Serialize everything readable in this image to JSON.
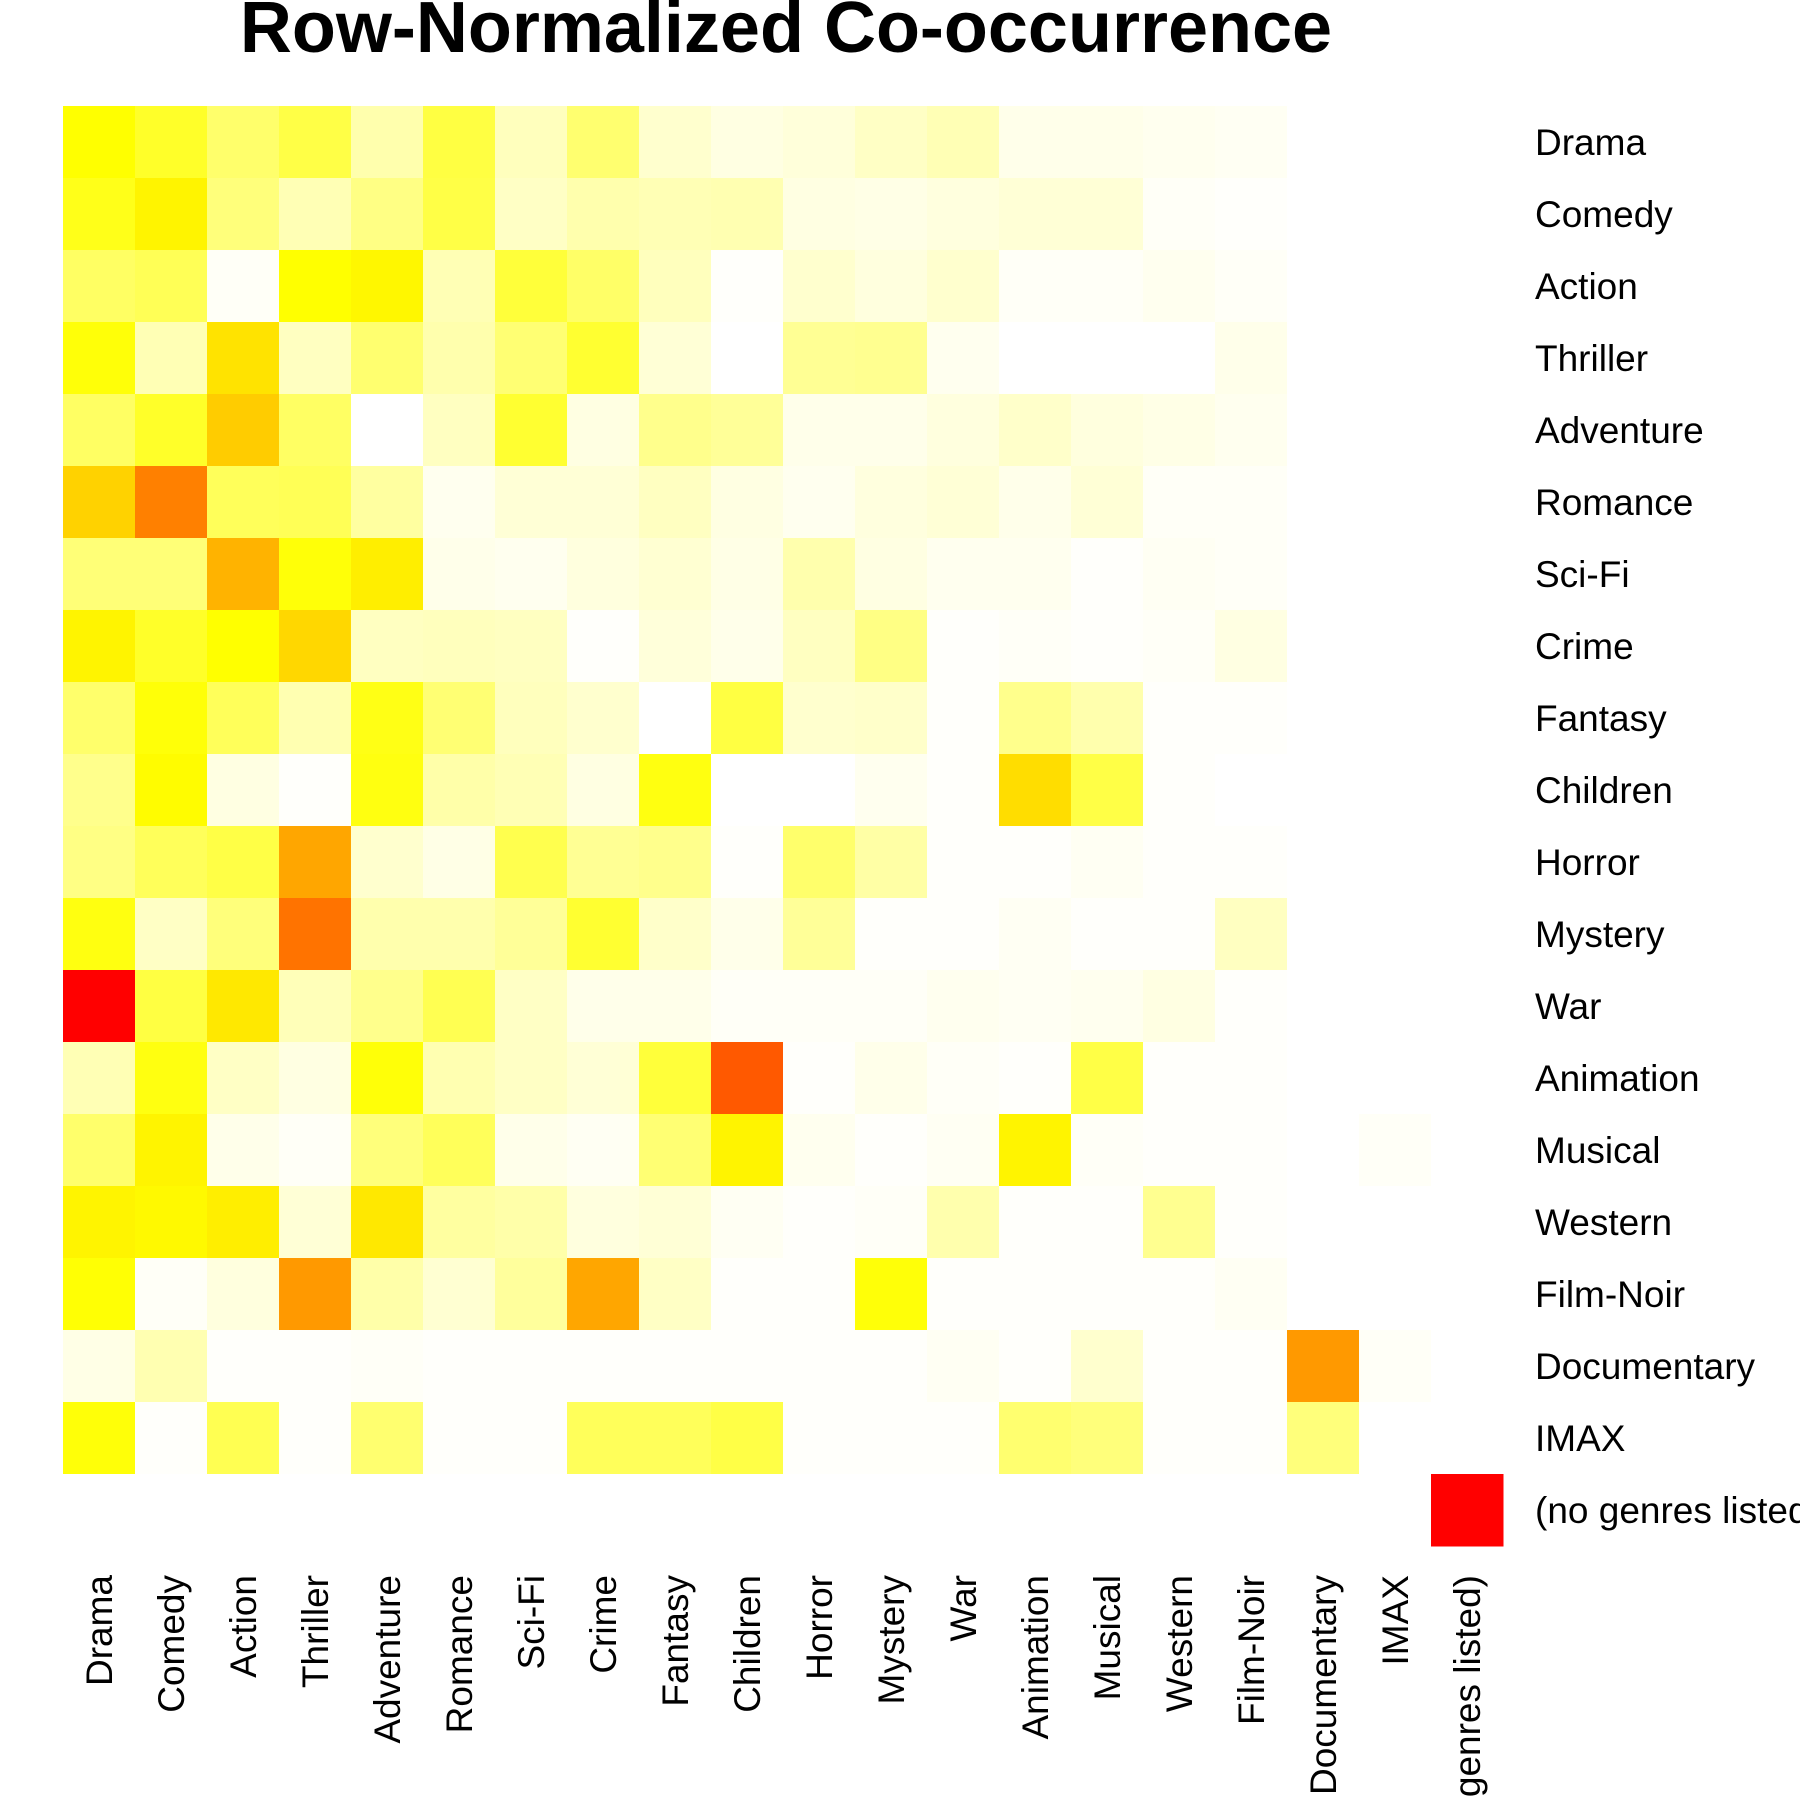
{
  "chart_data": {
    "type": "heatmap",
    "title": "Row-Normalized Co-occurrence",
    "rows": [
      "Drama",
      "Comedy",
      "Action",
      "Thriller",
      "Adventure",
      "Romance",
      "Sci-Fi",
      "Crime",
      "Fantasy",
      "Children",
      "Horror",
      "Mystery",
      "War",
      "Animation",
      "Musical",
      "Western",
      "Film-Noir",
      "Documentary",
      "IMAX",
      "(no genres listed)"
    ],
    "columns": [
      "Drama",
      "Comedy",
      "Action",
      "Thriller",
      "Adventure",
      "Romance",
      "Sci-Fi",
      "Crime",
      "Fantasy",
      "Children",
      "Horror",
      "Mystery",
      "War",
      "Animation",
      "Musical",
      "Western",
      "Film-Noir",
      "Documentary",
      "IMAX",
      "(no genres listed)"
    ],
    "values": [
      [
        0.62,
        0.52,
        0.36,
        0.45,
        0.2,
        0.46,
        0.16,
        0.35,
        0.12,
        0.07,
        0.09,
        0.14,
        0.18,
        0.05,
        0.05,
        0.04,
        0.03,
        0,
        0,
        0
      ],
      [
        0.56,
        0.66,
        0.32,
        0.18,
        0.3,
        0.45,
        0.14,
        0.2,
        0.18,
        0.19,
        0.07,
        0.06,
        0.08,
        0.1,
        0.1,
        0.02,
        0.01,
        0,
        0,
        0
      ],
      [
        0.38,
        0.41,
        0.02,
        0.62,
        0.65,
        0.18,
        0.48,
        0.37,
        0.16,
        0.01,
        0.12,
        0.08,
        0.12,
        0.02,
        0.02,
        0.04,
        0.02,
        0,
        0,
        0
      ],
      [
        0.6,
        0.18,
        0.72,
        0.15,
        0.35,
        0.2,
        0.34,
        0.5,
        0.1,
        0,
        0.26,
        0.27,
        0.04,
        0,
        0,
        0,
        0.05,
        0,
        0,
        0
      ],
      [
        0.38,
        0.52,
        0.8,
        0.38,
        0,
        0.15,
        0.5,
        0.07,
        0.28,
        0.25,
        0.05,
        0.05,
        0.08,
        0.13,
        0.08,
        0.06,
        0.04,
        0,
        0,
        0
      ],
      [
        0.78,
        0.86,
        0.4,
        0.41,
        0.23,
        0.04,
        0.1,
        0.1,
        0.15,
        0.07,
        0.04,
        0.08,
        0.1,
        0.05,
        0.1,
        0.02,
        0.02,
        0,
        0,
        0
      ],
      [
        0.33,
        0.33,
        0.82,
        0.6,
        0.68,
        0.05,
        0.04,
        0.08,
        0.11,
        0.06,
        0.2,
        0.07,
        0.04,
        0.04,
        0.01,
        0.03,
        0.02,
        0,
        0,
        0
      ],
      [
        0.66,
        0.52,
        0.62,
        0.76,
        0.15,
        0.16,
        0.15,
        0.01,
        0.09,
        0.05,
        0.15,
        0.3,
        0.01,
        0.02,
        0.01,
        0.02,
        0.07,
        0,
        0,
        0
      ],
      [
        0.36,
        0.6,
        0.4,
        0.19,
        0.57,
        0.34,
        0.16,
        0.12,
        0,
        0.46,
        0.12,
        0.13,
        0.01,
        0.28,
        0.2,
        0.01,
        0.01,
        0,
        0,
        0
      ],
      [
        0.28,
        0.63,
        0.07,
        0.01,
        0.58,
        0.21,
        0.18,
        0.07,
        0.58,
        0,
        0,
        0.04,
        0.01,
        0.74,
        0.45,
        0.01,
        0,
        0,
        0,
        0
      ],
      [
        0.3,
        0.4,
        0.45,
        0.83,
        0.12,
        0.06,
        0.43,
        0.26,
        0.28,
        0.01,
        0.36,
        0.22,
        0.01,
        0.01,
        0.03,
        0.01,
        0.01,
        0,
        0,
        0
      ],
      [
        0.58,
        0.14,
        0.32,
        0.87,
        0.2,
        0.2,
        0.25,
        0.5,
        0.13,
        0.05,
        0.25,
        0.01,
        0.01,
        0.03,
        0.01,
        0.01,
        0.15,
        0,
        0,
        0
      ],
      [
        1.0,
        0.46,
        0.7,
        0.17,
        0.28,
        0.42,
        0.14,
        0.05,
        0.05,
        0.02,
        0.02,
        0.02,
        0.04,
        0.03,
        0.04,
        0.07,
        0.01,
        0,
        0,
        0
      ],
      [
        0.18,
        0.58,
        0.14,
        0.07,
        0.6,
        0.19,
        0.14,
        0.1,
        0.48,
        0.89,
        0.01,
        0.05,
        0.02,
        0.01,
        0.45,
        0.01,
        0.01,
        0,
        0,
        0
      ],
      [
        0.36,
        0.66,
        0.05,
        0.02,
        0.32,
        0.4,
        0.05,
        0.03,
        0.34,
        0.66,
        0.04,
        0.01,
        0.03,
        0.66,
        0.02,
        0.01,
        0.01,
        0,
        0.02,
        0
      ],
      [
        0.66,
        0.64,
        0.68,
        0.1,
        0.7,
        0.23,
        0.21,
        0.08,
        0.1,
        0.03,
        0.01,
        0.02,
        0.2,
        0.01,
        0.01,
        0.27,
        0.01,
        0,
        0,
        0
      ],
      [
        0.61,
        0.02,
        0.08,
        0.84,
        0.21,
        0.11,
        0.24,
        0.83,
        0.14,
        0.01,
        0.01,
        0.6,
        0.01,
        0.01,
        0.01,
        0.01,
        0.03,
        0,
        0,
        0
      ],
      [
        0.06,
        0.19,
        0.01,
        0.01,
        0.02,
        0.01,
        0.01,
        0.01,
        0.01,
        0.01,
        0.01,
        0.01,
        0.03,
        0.01,
        0.12,
        0.01,
        0.01,
        0.84,
        0.02,
        0
      ],
      [
        0.6,
        0.01,
        0.42,
        0.01,
        0.35,
        0.01,
        0.01,
        0.4,
        0.4,
        0.45,
        0.01,
        0.01,
        0.01,
        0.35,
        0.32,
        0.01,
        0.01,
        0.32,
        0,
        0
      ],
      [
        0,
        0,
        0,
        0,
        0,
        0,
        0,
        0,
        0,
        0,
        0,
        0,
        0,
        0,
        0,
        0,
        0,
        0,
        0,
        1.0
      ]
    ],
    "colormap": [
      "#ffffff",
      "#ffff00",
      "#ffcc00",
      "#ff3300",
      "#ff0000"
    ],
    "legend": "none",
    "grid": false
  }
}
